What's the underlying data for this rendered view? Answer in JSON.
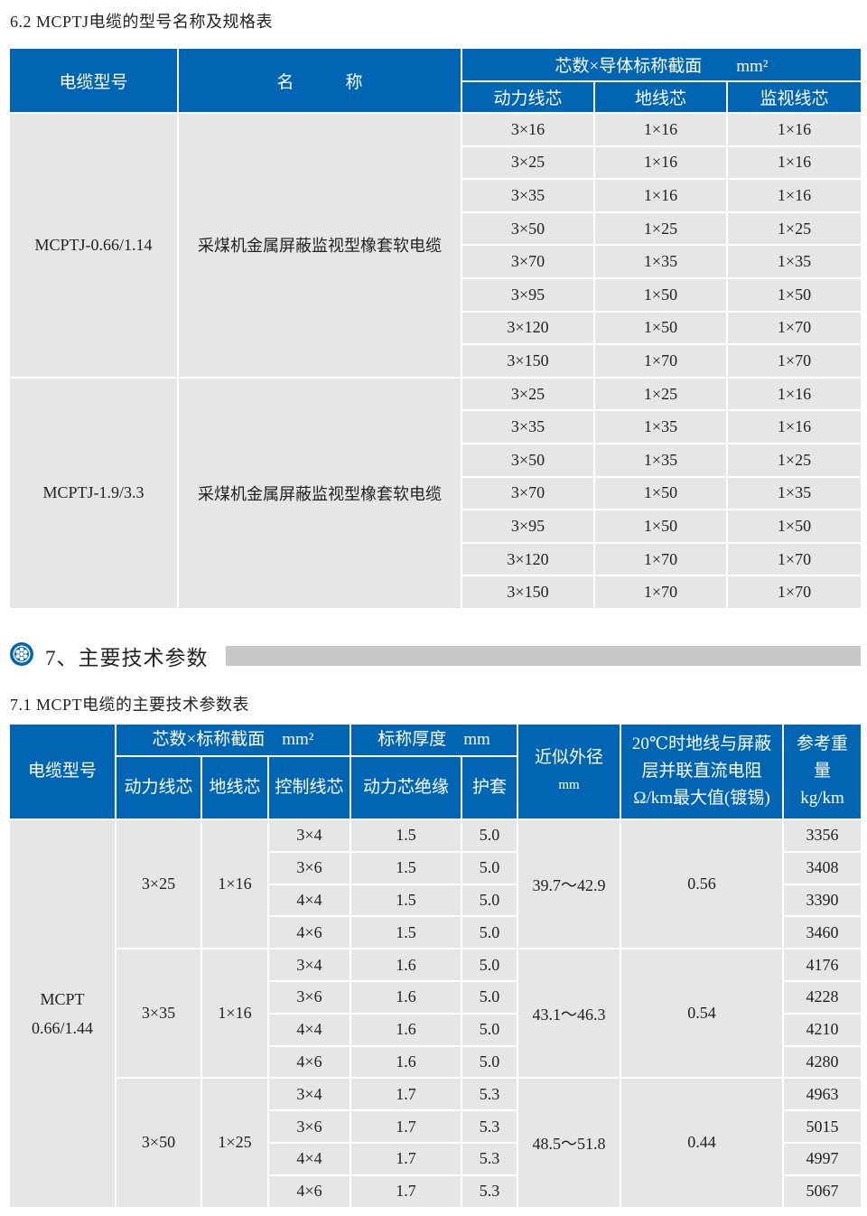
{
  "table1": {
    "title": "6.2 MCPTJ电缆的型号名称及规格表",
    "headers": {
      "model": "电缆型号",
      "name": "名　　　称",
      "group": "芯数×导体标称截面　　mm²",
      "power": "动力线芯",
      "ground": "地线芯",
      "monitor": "监视线芯"
    },
    "groups": [
      {
        "model": "MCPTJ-0.66/1.14",
        "name": "采煤机金属屏蔽监视型橡套软电缆",
        "rows": [
          [
            "3×16",
            "1×16",
            "1×16"
          ],
          [
            "3×25",
            "1×16",
            "1×16"
          ],
          [
            "3×35",
            "1×16",
            "1×16"
          ],
          [
            "3×50",
            "1×25",
            "1×25"
          ],
          [
            "3×70",
            "1×35",
            "1×35"
          ],
          [
            "3×95",
            "1×50",
            "1×50"
          ],
          [
            "3×120",
            "1×50",
            "1×70"
          ],
          [
            "3×150",
            "1×70",
            "1×70"
          ]
        ]
      },
      {
        "model": "MCPTJ-1.9/3.3",
        "name": "采煤机金属屏蔽监视型橡套软电缆",
        "rows": [
          [
            "3×25",
            "1×25",
            "1×16"
          ],
          [
            "3×35",
            "1×35",
            "1×16"
          ],
          [
            "3×50",
            "1×35",
            "1×25"
          ],
          [
            "3×70",
            "1×50",
            "1×35"
          ],
          [
            "3×95",
            "1×50",
            "1×50"
          ],
          [
            "3×120",
            "1×70",
            "1×70"
          ],
          [
            "3×150",
            "1×70",
            "1×70"
          ]
        ]
      }
    ]
  },
  "section": {
    "icon": "cable-cross-section-icon",
    "label": "7、主要技术参数",
    "accent": "#0066b3"
  },
  "table2": {
    "title": "7.1 MCPT电缆的主要技术参数表",
    "headers": {
      "model": "电缆型号",
      "cores": "芯数×标称截面　mm²",
      "thickness": "标称厚度　mm",
      "diameter": "近似外径",
      "diameter_unit": "mm",
      "resistance": "20℃时地线与屏蔽层并联直流电阻Ω/km最大值(镀锡)",
      "weight": "参考重量kg/km",
      "power": "动力线芯",
      "ground": "地线芯",
      "control": "控制线芯",
      "insulation": "动力芯绝缘",
      "sheath": "护套"
    },
    "model_lines": [
      "MCPT",
      "0.66/1.44"
    ],
    "groups": [
      {
        "power": "3×25",
        "ground": "1×16",
        "diameter": "39.7～42.9",
        "resistance": "0.56",
        "rows": [
          [
            "3×4",
            "1.5",
            "5.0",
            "3356"
          ],
          [
            "3×6",
            "1.5",
            "5.0",
            "3408"
          ],
          [
            "4×4",
            "1.5",
            "5.0",
            "3390"
          ],
          [
            "4×6",
            "1.5",
            "5.0",
            "3460"
          ]
        ]
      },
      {
        "power": "3×35",
        "ground": "1×16",
        "diameter": "43.1～46.3",
        "resistance": "0.54",
        "rows": [
          [
            "3×4",
            "1.6",
            "5.0",
            "4176"
          ],
          [
            "3×6",
            "1.6",
            "5.0",
            "4228"
          ],
          [
            "4×4",
            "1.6",
            "5.0",
            "4210"
          ],
          [
            "4×6",
            "1.6",
            "5.0",
            "4280"
          ]
        ]
      },
      {
        "power": "3×50",
        "ground": "1×25",
        "diameter": "48.5～51.8",
        "resistance": "0.44",
        "rows": [
          [
            "3×4",
            "1.7",
            "5.3",
            "4963"
          ],
          [
            "3×6",
            "1.7",
            "5.3",
            "5015"
          ],
          [
            "4×4",
            "1.7",
            "5.3",
            "4997"
          ],
          [
            "4×6",
            "1.7",
            "5.3",
            "5067"
          ]
        ]
      }
    ]
  },
  "colors": {
    "header": "#0066b3",
    "cell": "#e6e6e6",
    "bar": "#c8c8c8"
  }
}
